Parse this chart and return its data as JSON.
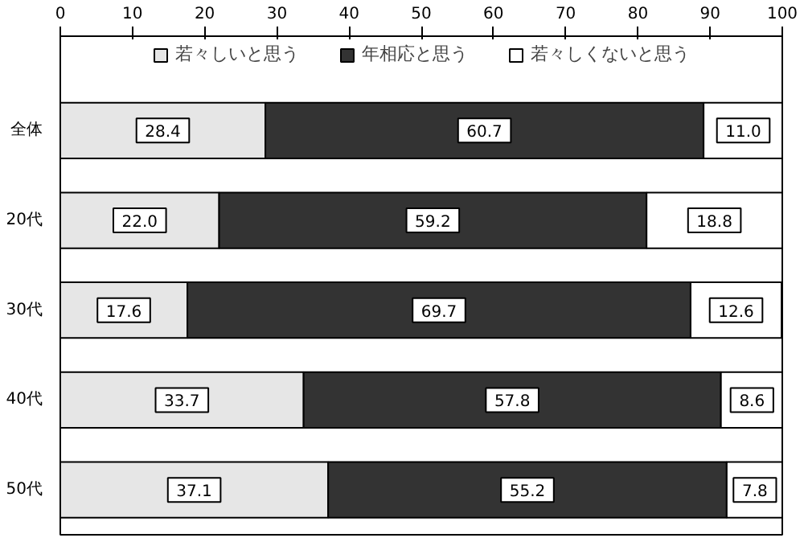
{
  "chart_data": {
    "type": "bar",
    "orientation": "horizontal",
    "stacked": true,
    "categories": [
      "全体",
      "20代",
      "30代",
      "40代",
      "50代"
    ],
    "series": [
      {
        "name": "若々しいと思う",
        "color": "#e6e6e6",
        "values": [
          28.4,
          22.0,
          17.6,
          33.7,
          37.1
        ],
        "value_labels": [
          "28.4",
          "22.0",
          "17.6",
          "33.7",
          "37.1"
        ]
      },
      {
        "name": "年相応と思う",
        "color": "#333333",
        "values": [
          60.7,
          59.2,
          69.7,
          57.8,
          55.2
        ],
        "value_labels": [
          "60.7",
          "59.2",
          "69.7",
          "57.8",
          "55.2"
        ]
      },
      {
        "name": "若々しくないと思う",
        "color": "#ffffff",
        "values": [
          11.0,
          18.8,
          12.6,
          8.6,
          7.8
        ],
        "value_labels": [
          "11.0",
          "18.8",
          "12.6",
          "8.6",
          "7.8"
        ]
      }
    ],
    "xlim": [
      0,
      100
    ],
    "xticks": [
      0,
      10,
      20,
      30,
      40,
      50,
      60,
      70,
      80,
      90,
      100
    ],
    "grid": false,
    "legend": "top"
  }
}
